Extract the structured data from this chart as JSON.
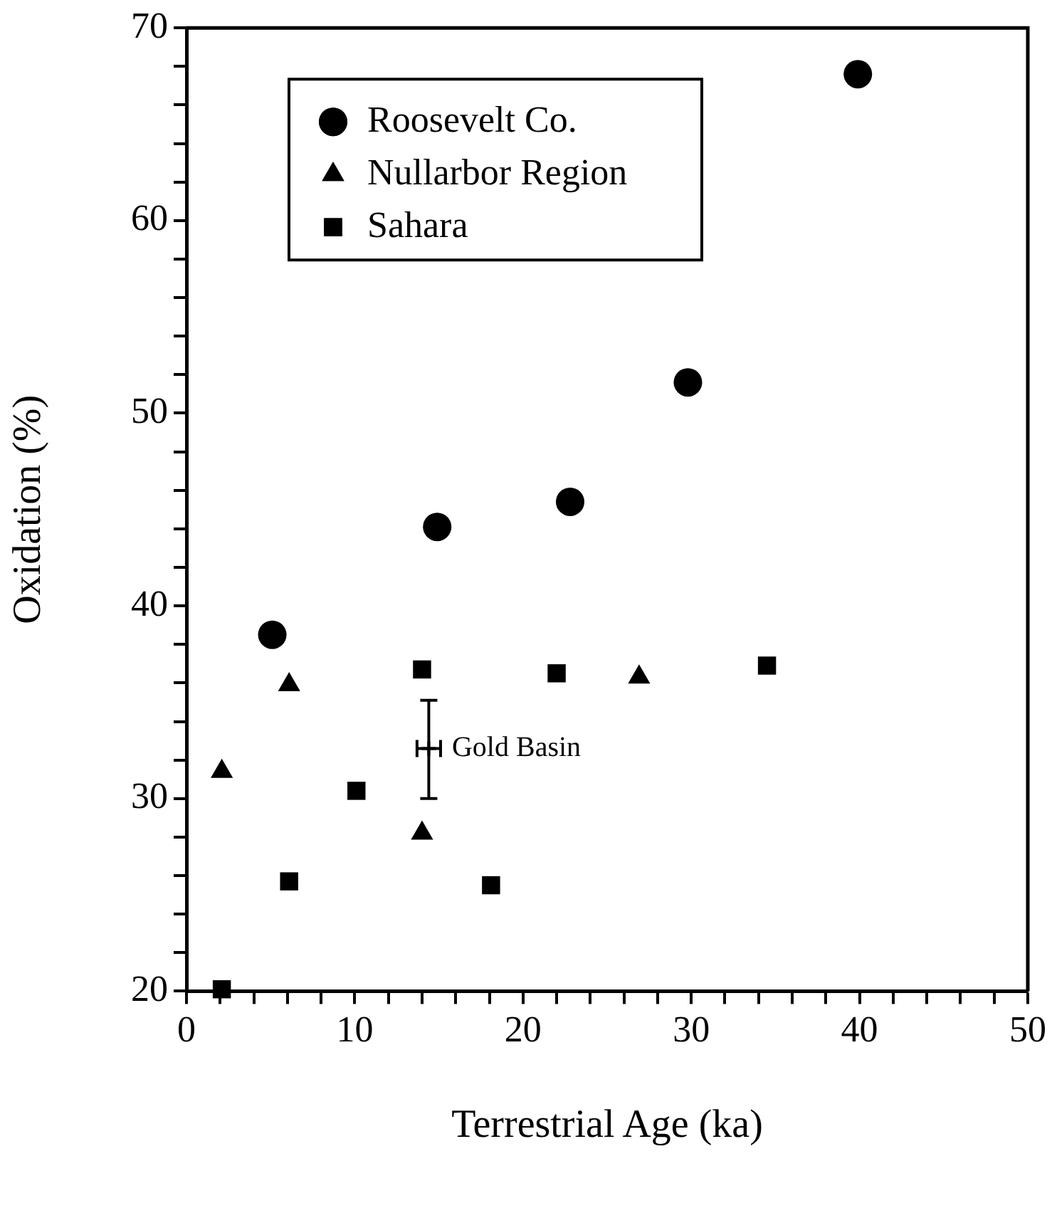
{
  "chart_data": {
    "type": "scatter",
    "xlabel": "Terrestrial Age (ka)",
    "ylabel": "Oxidation (%)",
    "xlim": [
      0,
      50
    ],
    "ylim": [
      20,
      70
    ],
    "xticks": [
      0,
      {
        "value": 2,
        "label": null
      },
      {
        "value": 4,
        "label": null
      },
      {
        "value": 6,
        "label": null
      },
      {
        "value": 8,
        "label": null
      },
      10,
      {
        "value": 12,
        "label": null
      },
      {
        "value": 14,
        "label": null
      },
      {
        "value": 16,
        "label": null
      },
      {
        "value": 18,
        "label": null
      },
      20,
      {
        "value": 22,
        "label": null
      },
      {
        "value": 24,
        "label": null
      },
      {
        "value": 26,
        "label": null
      },
      {
        "value": 28,
        "label": null
      },
      30,
      {
        "value": 32,
        "label": null
      },
      {
        "value": 34,
        "label": null
      },
      {
        "value": 36,
        "label": null
      },
      {
        "value": 38,
        "label": null
      },
      40,
      {
        "value": 42,
        "label": null
      },
      {
        "value": 44,
        "label": null
      },
      {
        "value": 46,
        "label": null
      },
      {
        "value": 48,
        "label": null
      },
      50
    ],
    "yticks": [
      20,
      {
        "value": 22,
        "label": null
      },
      {
        "value": 24,
        "label": null
      },
      {
        "value": 26,
        "label": null
      },
      {
        "value": 28,
        "label": null
      },
      30,
      {
        "value": 32,
        "label": null
      },
      {
        "value": 34,
        "label": null
      },
      {
        "value": 36,
        "label": null
      },
      {
        "value": 38,
        "label": null
      },
      40,
      {
        "value": 42,
        "label": null
      },
      {
        "value": 44,
        "label": null
      },
      {
        "value": 46,
        "label": null
      },
      {
        "value": 48,
        "label": null
      },
      50,
      {
        "value": 52,
        "label": null
      },
      {
        "value": 54,
        "label": null
      },
      {
        "value": 56,
        "label": null
      },
      {
        "value": 58,
        "label": null
      },
      60,
      {
        "value": 62,
        "label": null
      },
      {
        "value": 64,
        "label": null
      },
      {
        "value": 66,
        "label": null
      },
      {
        "value": 68,
        "label": null
      },
      70
    ],
    "grid": false,
    "legend": "top left",
    "series": [
      {
        "name": "Roosevelt Co.",
        "color": "#000000",
        "marker": "circle",
        "x": [
          5.1,
          14.9,
          22.8,
          29.8,
          39.9
        ],
        "values": [
          38.5,
          44.1,
          45.4,
          51.6,
          67.6
        ]
      },
      {
        "name": "Nullarbor Region",
        "color": "#000000",
        "marker": "triangle",
        "x": [
          2.1,
          6.1,
          14.0,
          26.9
        ],
        "values": [
          31.4,
          35.9,
          28.2,
          36.3
        ]
      },
      {
        "name": "Sahara",
        "color": "#000000",
        "marker": "square",
        "x": [
          2.1,
          6.1,
          10.1,
          14.0,
          18.1,
          22.0,
          34.5
        ],
        "values": [
          20.1,
          25.7,
          30.4,
          36.7,
          25.5,
          36.5,
          36.9
        ]
      },
      {
        "name": "Gold Basin",
        "color": "#000000",
        "marker": "cross",
        "x": [
          14.4
        ],
        "values": [
          32.6
        ],
        "errors": [
          [
            30.0,
            35.1
          ]
        ],
        "xerrors": [
          0.7
        ]
      }
    ]
  }
}
